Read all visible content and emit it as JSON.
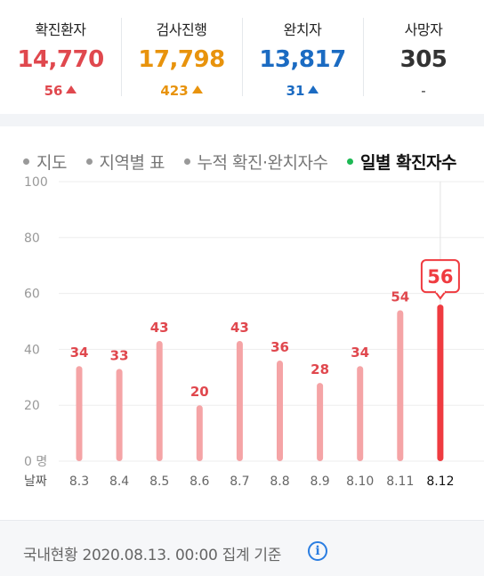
{
  "stats": [
    {
      "label": "확진환자",
      "value": "14,770",
      "delta": "56",
      "color": "#e0484e",
      "arrow": "up"
    },
    {
      "label": "검사진행",
      "value": "17,798",
      "delta": "423",
      "color": "#e8930c",
      "arrow": "up"
    },
    {
      "label": "완치자",
      "value": "13,817",
      "delta": "31",
      "color": "#1b6bc2",
      "arrow": "up"
    },
    {
      "label": "사망자",
      "value": "305",
      "delta": "-",
      "color": "#333333",
      "arrow": "none"
    }
  ],
  "tabs": [
    {
      "label": "지도",
      "active": false
    },
    {
      "label": "지역별 표",
      "active": false
    },
    {
      "label": "누적 확진·완치자수",
      "active": false
    },
    {
      "label": "일별 확진자수",
      "active": true
    }
  ],
  "chart_data": {
    "type": "bar",
    "categories": [
      "8.3",
      "8.4",
      "8.5",
      "8.6",
      "8.7",
      "8.8",
      "8.9",
      "8.10",
      "8.11",
      "8.12"
    ],
    "values": [
      34,
      33,
      43,
      20,
      43,
      36,
      28,
      34,
      54,
      56
    ],
    "y_ticks": [
      "0 명",
      "20",
      "40",
      "60",
      "80",
      "100"
    ],
    "ylim": [
      0,
      100
    ],
    "xlabel": "날짜",
    "highlight_index": 9,
    "bar_color": "#f5a4a6",
    "highlight_color": "#ef3b40",
    "label_color": "#e0484e"
  },
  "footer": {
    "text": "국내현황 2020.08.13. 00:00 집계 기준",
    "info_icon": "i"
  }
}
